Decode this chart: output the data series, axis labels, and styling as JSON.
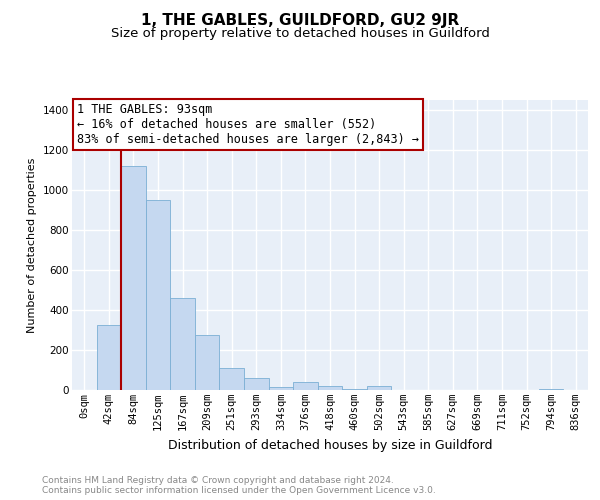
{
  "title": "1, THE GABLES, GUILDFORD, GU2 9JR",
  "subtitle": "Size of property relative to detached houses in Guildford",
  "xlabel": "Distribution of detached houses by size in Guildford",
  "ylabel": "Number of detached properties",
  "categories": [
    "0sqm",
    "42sqm",
    "84sqm",
    "125sqm",
    "167sqm",
    "209sqm",
    "251sqm",
    "293sqm",
    "334sqm",
    "376sqm",
    "418sqm",
    "460sqm",
    "502sqm",
    "543sqm",
    "585sqm",
    "627sqm",
    "669sqm",
    "711sqm",
    "752sqm",
    "794sqm",
    "836sqm"
  ],
  "values": [
    0,
    325,
    1120,
    950,
    460,
    275,
    110,
    60,
    15,
    40,
    20,
    5,
    20,
    0,
    0,
    0,
    0,
    0,
    0,
    5,
    0
  ],
  "bar_color": "#c5d8f0",
  "bar_edgecolor": "#7bafd4",
  "property_line_color": "#aa0000",
  "annotation_text": "1 THE GABLES: 93sqm\n← 16% of detached houses are smaller (552)\n83% of semi-detached houses are larger (2,843) →",
  "annotation_box_facecolor": "#ffffff",
  "annotation_box_edgecolor": "#aa0000",
  "ylim": [
    0,
    1450
  ],
  "yticks": [
    0,
    200,
    400,
    600,
    800,
    1000,
    1200,
    1400
  ],
  "footer_text": "Contains HM Land Registry data © Crown copyright and database right 2024.\nContains public sector information licensed under the Open Government Licence v3.0.",
  "background_color": "#e8eff8",
  "grid_color": "#ffffff",
  "title_fontsize": 11,
  "subtitle_fontsize": 9.5,
  "xlabel_fontsize": 9,
  "ylabel_fontsize": 8,
  "tick_fontsize": 7.5,
  "annotation_fontsize": 8.5,
  "footer_fontsize": 6.5
}
